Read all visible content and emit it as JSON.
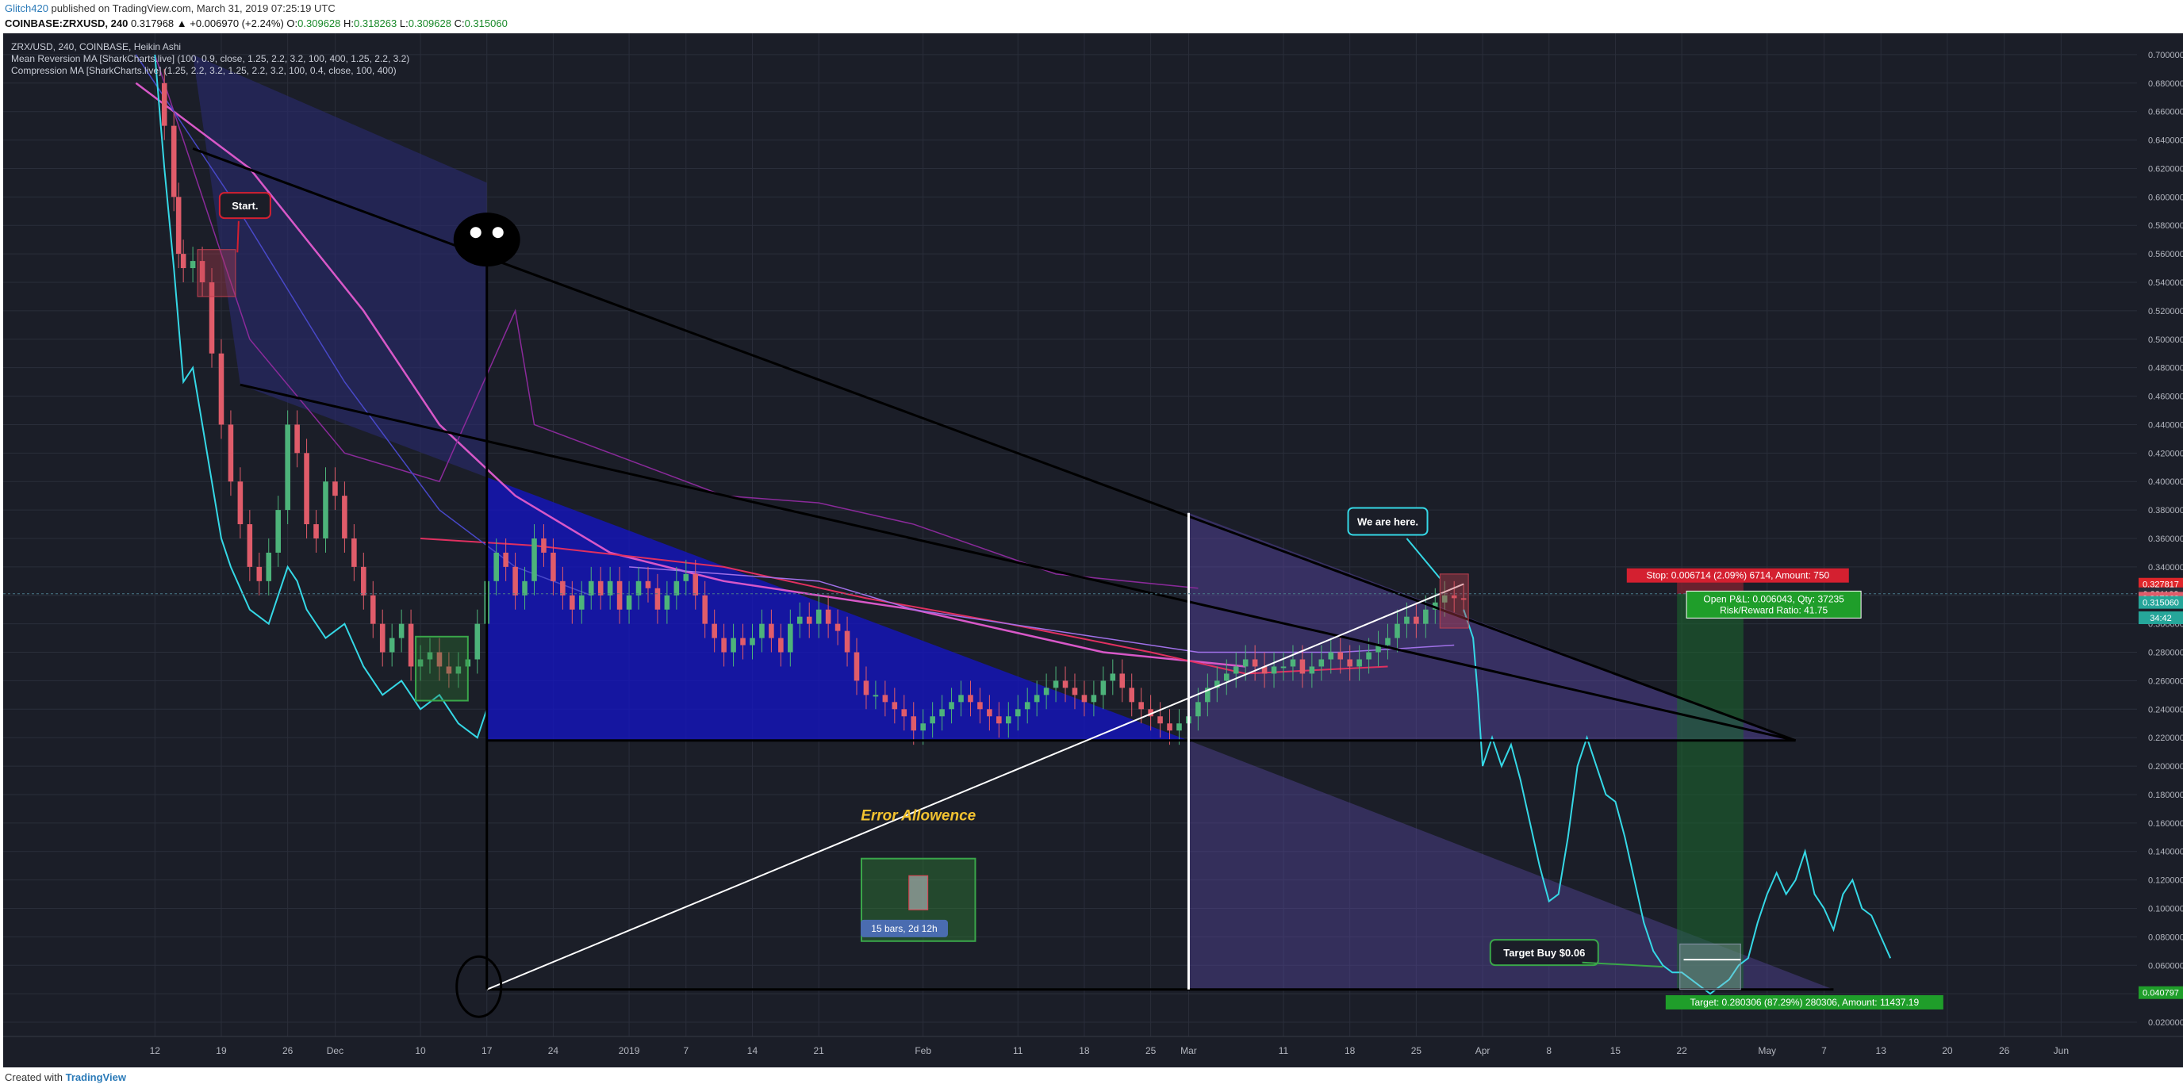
{
  "header": {
    "author": "Glitch420",
    "published_text": "published on TradingView.com, March 31, 2019 07:25:19 UTC",
    "symbol": "COINBASE:ZRXUSD, 240",
    "change": "0.317968 ▲ +0.006970 (+2.24%)",
    "o_label": "O:",
    "o_value": "0.309628",
    "h_label": "H:",
    "h_value": "0.318263",
    "l_label": "L:",
    "l_value": "0.309628",
    "c_label": "C:",
    "c_value": "0.315060"
  },
  "legend": {
    "line1": "ZRX/USD, 240, COINBASE, Heikin Ashi",
    "line2": "Mean Reversion MA [SharkCharts.live] (100, 0.9, close, 1.25, 2.2, 3.2, 100, 400, 1.25, 2.2, 3.2)",
    "line3": "Compression MA [SharkCharts.live] (1.25, 2.2, 3.2, 1.25, 2.2, 3.2, 100, 0.4, close, 100, 400)"
  },
  "annotations": {
    "start": "Start.",
    "we_are_here": "We are here.",
    "target_buy": "Target Buy $0.06",
    "error_allowance": "Error Allowence",
    "bars_range": "15 bars, 2d 12h",
    "stop_label": "Stop: 0.006714 (2.09%) 6714, Amount: 750",
    "open_pnl": "Open P&L: 0.006043, Qty: 37235",
    "risk_reward": "Risk/Reward Ratio: 41.75",
    "target_label": "Target: 0.280306 (87.29%) 280306, Amount: 11437.19"
  },
  "price_labels": [
    {
      "value": "0.327817",
      "color": "#e0262a"
    },
    {
      "value": "0.321103",
      "color": "#2a2e39"
    },
    {
      "value": "0.317968",
      "color": "#e05c6a"
    },
    {
      "value": "0.315060",
      "color": "#26a69a"
    },
    {
      "value": "34:42",
      "color": "#26a69a"
    },
    {
      "value": "0.040797",
      "color": "#1f9e2a"
    }
  ],
  "footer": {
    "created_with": "Created with",
    "brand": "TradingView"
  },
  "colors": {
    "background": "#1b1e28",
    "grid": "#2a2e3a",
    "bull": "#4db37a",
    "bear": "#e05c6a",
    "cyan": "#35d8e6",
    "triangle_fill": "#1414c8",
    "projection_fill": "#5a48a8"
  },
  "chart_data": {
    "type": "line",
    "title": "ZRX/USD, 240, COINBASE, Heikin Ashi",
    "y_axis_ticks": [
      "0.700000",
      "0.680000",
      "0.660000",
      "0.640000",
      "0.620000",
      "0.600000",
      "0.580000",
      "0.560000",
      "0.540000",
      "0.520000",
      "0.500000",
      "0.480000",
      "0.460000",
      "0.440000",
      "0.420000",
      "0.400000",
      "0.380000",
      "0.360000",
      "0.340000",
      "0.320000",
      "0.300000",
      "0.280000",
      "0.260000",
      "0.240000",
      "0.220000",
      "0.200000",
      "0.180000",
      "0.160000",
      "0.140000",
      "0.120000",
      "0.100000",
      "0.080000",
      "0.060000",
      "0.040000",
      "0.020000"
    ],
    "ylim": [
      0.01,
      0.715
    ],
    "x_axis_ticks": [
      {
        "label": "12",
        "day": 0
      },
      {
        "label": "19",
        "day": 7
      },
      {
        "label": "26",
        "day": 14
      },
      {
        "label": "Dec",
        "day": 19
      },
      {
        "label": "10",
        "day": 28
      },
      {
        "label": "17",
        "day": 35
      },
      {
        "label": "24",
        "day": 42
      },
      {
        "label": "2019",
        "day": 50
      },
      {
        "label": "7",
        "day": 56
      },
      {
        "label": "14",
        "day": 63
      },
      {
        "label": "21",
        "day": 70
      },
      {
        "label": "Feb",
        "day": 81
      },
      {
        "label": "11",
        "day": 91
      },
      {
        "label": "18",
        "day": 98
      },
      {
        "label": "25",
        "day": 105
      },
      {
        "label": "Mar",
        "day": 109
      },
      {
        "label": "11",
        "day": 119
      },
      {
        "label": "18",
        "day": 126
      },
      {
        "label": "25",
        "day": 133
      },
      {
        "label": "Apr",
        "day": 140
      },
      {
        "label": "8",
        "day": 147
      },
      {
        "label": "15",
        "day": 154
      },
      {
        "label": "22",
        "day": 161
      },
      {
        "label": "May",
        "day": 170
      },
      {
        "label": "7",
        "day": 176
      },
      {
        "label": "13",
        "day": 182
      },
      {
        "label": "20",
        "day": 189
      },
      {
        "label": "26",
        "day": 195
      },
      {
        "label": "Jun",
        "day": 201
      }
    ],
    "series": [
      {
        "name": "ZRX/USD",
        "style": "candles",
        "x": [
          0,
          1,
          2,
          2.5,
          3,
          4,
          5,
          6,
          7,
          8,
          9,
          10,
          11,
          12,
          13,
          14,
          15,
          16,
          17,
          18,
          19,
          20,
          21,
          22,
          23,
          24,
          25,
          26,
          27,
          28,
          29,
          30,
          31,
          32,
          33,
          34,
          35,
          36,
          37,
          38,
          39,
          40,
          41,
          42,
          43,
          44,
          45,
          46,
          47,
          48,
          49,
          50,
          51,
          52,
          53,
          54,
          55,
          56,
          57,
          58,
          59,
          60,
          61,
          62,
          63,
          64,
          65,
          66,
          67,
          68,
          69,
          70,
          71,
          72,
          73,
          74,
          75,
          76,
          77,
          78,
          79,
          80,
          81,
          82,
          83,
          84,
          85,
          86,
          87,
          88,
          89,
          90,
          91,
          92,
          93,
          94,
          95,
          96,
          97,
          98,
          99,
          100,
          101,
          102,
          103,
          104,
          105,
          106,
          107,
          108,
          109,
          110,
          111,
          112,
          113,
          114,
          115,
          116,
          117,
          118,
          119,
          120,
          121,
          122,
          123,
          124,
          125,
          126,
          127,
          128,
          129,
          130,
          131,
          132,
          133,
          134,
          135,
          136,
          137,
          138
        ],
        "values": [
          0.68,
          0.65,
          0.6,
          0.56,
          0.55,
          0.555,
          0.54,
          0.49,
          0.44,
          0.4,
          0.37,
          0.34,
          0.33,
          0.35,
          0.38,
          0.44,
          0.42,
          0.37,
          0.36,
          0.4,
          0.39,
          0.36,
          0.34,
          0.32,
          0.3,
          0.28,
          0.29,
          0.3,
          0.27,
          0.275,
          0.28,
          0.27,
          0.265,
          0.27,
          0.275,
          0.3,
          0.33,
          0.35,
          0.34,
          0.32,
          0.33,
          0.36,
          0.35,
          0.33,
          0.32,
          0.31,
          0.32,
          0.33,
          0.32,
          0.33,
          0.31,
          0.32,
          0.33,
          0.325,
          0.31,
          0.32,
          0.33,
          0.335,
          0.32,
          0.3,
          0.29,
          0.28,
          0.29,
          0.285,
          0.29,
          0.3,
          0.29,
          0.28,
          0.3,
          0.305,
          0.3,
          0.31,
          0.3,
          0.295,
          0.28,
          0.26,
          0.25,
          0.25,
          0.245,
          0.24,
          0.235,
          0.225,
          0.23,
          0.235,
          0.24,
          0.245,
          0.25,
          0.245,
          0.24,
          0.235,
          0.23,
          0.235,
          0.24,
          0.245,
          0.25,
          0.255,
          0.26,
          0.255,
          0.25,
          0.245,
          0.25,
          0.26,
          0.265,
          0.255,
          0.245,
          0.24,
          0.235,
          0.23,
          0.225,
          0.23,
          0.235,
          0.245,
          0.255,
          0.26,
          0.265,
          0.27,
          0.275,
          0.27,
          0.265,
          0.27,
          0.27,
          0.275,
          0.265,
          0.27,
          0.275,
          0.28,
          0.275,
          0.27,
          0.275,
          0.28,
          0.285,
          0.29,
          0.3,
          0.305,
          0.3,
          0.31,
          0.315,
          0.32,
          0.318,
          0.317968
        ]
      },
      {
        "name": "Projected",
        "style": "cyan-line",
        "x": [
          138,
          139,
          139.5,
          140,
          141,
          142,
          143,
          144,
          145,
          146,
          147,
          148,
          149,
          150,
          151,
          152,
          153,
          154,
          155,
          156,
          157,
          158,
          159,
          160,
          161,
          162,
          163,
          164,
          165,
          166,
          167,
          168,
          169,
          170,
          171,
          172,
          173,
          174,
          175,
          176,
          177,
          178,
          179,
          180,
          181,
          182,
          183
        ],
        "values": [
          0.31,
          0.29,
          0.25,
          0.2,
          0.22,
          0.2,
          0.215,
          0.19,
          0.16,
          0.13,
          0.105,
          0.11,
          0.15,
          0.2,
          0.22,
          0.2,
          0.18,
          0.175,
          0.15,
          0.12,
          0.09,
          0.07,
          0.06,
          0.055,
          0.055,
          0.05,
          0.045,
          0.04,
          0.045,
          0.05,
          0.06,
          0.065,
          0.09,
          0.11,
          0.125,
          0.11,
          0.12,
          0.14,
          0.11,
          0.1,
          0.085,
          0.11,
          0.12,
          0.1,
          0.095,
          0.08,
          0.065
        ]
      }
    ],
    "drawings": {
      "upper_trendline": {
        "from": [
          4,
          0.634
        ],
        "to": [
          173,
          0.218
        ]
      },
      "mid_trendline": {
        "from": [
          9,
          0.468
        ],
        "to": [
          173,
          0.218
        ]
      },
      "support_line": {
        "from": [
          35,
          0.218
        ],
        "to": [
          173,
          0.218
        ]
      },
      "rising_line": {
        "from": [
          35,
          0.043
        ],
        "to": [
          138,
          0.328
        ]
      },
      "bottom_line": {
        "from": [
          35,
          0.043
        ],
        "to": [
          177,
          0.043
        ]
      },
      "current_price": 0.321103
    }
  }
}
